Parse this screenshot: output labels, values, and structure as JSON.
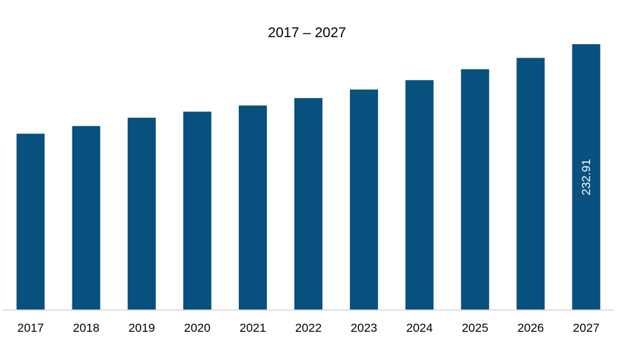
{
  "chart_data": {
    "type": "bar",
    "title": "2017 – 2027",
    "xlabel": "",
    "ylabel": "",
    "categories": [
      "2017",
      "2018",
      "2019",
      "2020",
      "2021",
      "2022",
      "2023",
      "2024",
      "2025",
      "2026",
      "2027"
    ],
    "values": [
      154.5,
      161.2,
      168.5,
      173.8,
      179.2,
      185.7,
      193.2,
      201.4,
      211.0,
      220.9,
      232.91
    ],
    "data_labels": [
      "",
      "",
      "",
      "",
      "",
      "",
      "",
      "",
      "",
      "",
      "232.91"
    ],
    "ylim": [
      0,
      240
    ],
    "grid": false,
    "legend": "none",
    "bar_color": "#08507d",
    "axis_color": "#d9d9d9"
  }
}
